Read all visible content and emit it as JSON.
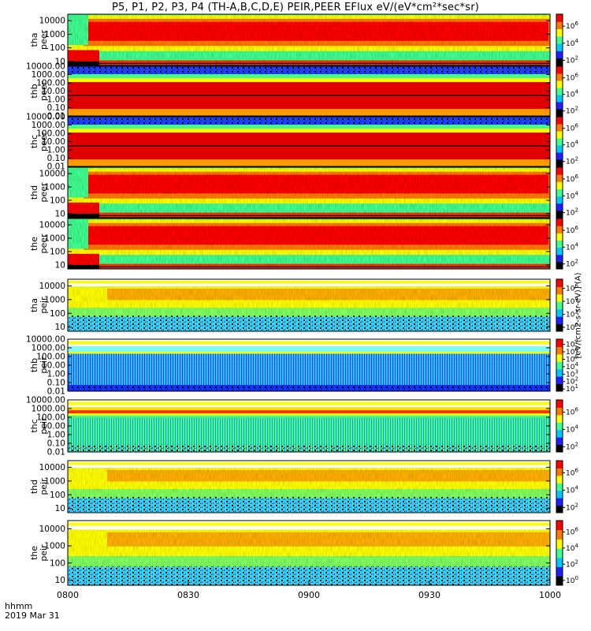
{
  "chart_data": {
    "type": "heatmap",
    "title": "P5, P1, P2, P3, P4 (TH-A,B,C,D,E) PEIR,PEER EFlux eV/(eV*cm²*sec*sr)",
    "x_axis": {
      "ticks": [
        "0800",
        "0830",
        "0900",
        "0930",
        "1000"
      ],
      "range": [
        "08:00",
        "10:00"
      ],
      "label": "hhmm",
      "date": "2019 Mar 31"
    },
    "colorbar_label": "[eV/(cm2-s-sr-eV)] (A)",
    "colormap": [
      "#000000",
      "#2020ff",
      "#00c8ff",
      "#40ff90",
      "#ffff00",
      "#ff7a00",
      "#ff0000"
    ],
    "panels": [
      {
        "id": "tha-peer",
        "probe": "tha",
        "species": "peer",
        "y_scale": "log",
        "y_range": [
          5,
          30000
        ],
        "y_ticks": [
          "10000",
          "1000",
          "100",
          "10"
        ],
        "c_ticks": [
          "10^6",
          "10^4",
          "10^2"
        ],
        "pattern": "eflux"
      },
      {
        "id": "thb-peer",
        "probe": "thb",
        "species": "peer",
        "y_scale": "log",
        "y_range": [
          0.01,
          10000
        ],
        "y_ticks": [
          "10000.00",
          "1000.00",
          "100.00",
          "10.00",
          "1.00",
          "0.10",
          "0.01"
        ],
        "c_ticks": [
          "10^6",
          "10^4",
          "10^2"
        ],
        "pattern": "bands"
      },
      {
        "id": "thc-peer",
        "probe": "thc",
        "species": "peer",
        "y_scale": "log",
        "y_range": [
          0.01,
          10000
        ],
        "y_ticks": [
          "10000.00",
          "1000.00",
          "100.00",
          "10.00",
          "1.00",
          "0.10",
          "0.01"
        ],
        "c_ticks": [
          "10^6",
          "10^4",
          "10^2"
        ],
        "pattern": "bands"
      },
      {
        "id": "thd-peer",
        "probe": "thd",
        "species": "peer",
        "y_scale": "log",
        "y_range": [
          5,
          30000
        ],
        "y_ticks": [
          "10000",
          "1000",
          "100",
          "10"
        ],
        "c_ticks": [
          "10^6",
          "10^4",
          "10^2"
        ],
        "pattern": "eflux"
      },
      {
        "id": "the-peer",
        "probe": "the",
        "species": "peer",
        "y_scale": "log",
        "y_range": [
          5,
          30000
        ],
        "y_ticks": [
          "10000",
          "1000",
          "100",
          "10"
        ],
        "c_ticks": [
          "10^6",
          "10^4",
          "10^2"
        ],
        "pattern": "eflux"
      },
      {
        "id": "tha-peir",
        "probe": "tha",
        "species": "peir",
        "y_scale": "log",
        "y_range": [
          5,
          30000
        ],
        "y_ticks": [
          "10000",
          "1000",
          "100",
          "10"
        ],
        "c_ticks": [
          "10^6",
          "10^4",
          "10^2",
          "10^0"
        ],
        "pattern": "ion"
      },
      {
        "id": "thb-peir",
        "probe": "thb",
        "species": "peir",
        "y_scale": "log",
        "y_range": [
          0.01,
          10000
        ],
        "y_ticks": [
          "10000.00",
          "1000.00",
          "100.00",
          "10.00",
          "1.00",
          "0.10",
          "0.01"
        ],
        "c_ticks": [
          "10^7",
          "10^6",
          "10^5",
          "10^4",
          "10^3",
          "10^2",
          "10^1"
        ],
        "pattern": "noise"
      },
      {
        "id": "thc-peir",
        "probe": "thc",
        "species": "peir",
        "y_scale": "log",
        "y_range": [
          0.01,
          10000
        ],
        "y_ticks": [
          "10000.00",
          "1000.00",
          "100.00",
          "10.00",
          "1.00",
          "0.10",
          "0.01"
        ],
        "c_ticks": [
          "10^6",
          "10^4",
          "10^2"
        ],
        "pattern": "noise2"
      },
      {
        "id": "thd-peir",
        "probe": "thd",
        "species": "peir",
        "y_scale": "log",
        "y_range": [
          5,
          30000
        ],
        "y_ticks": [
          "10000",
          "1000",
          "100",
          "10"
        ],
        "c_ticks": [
          "10^6",
          "10^4",
          "10^2"
        ],
        "pattern": "ion"
      },
      {
        "id": "the-peir",
        "probe": "the",
        "species": "peir",
        "y_scale": "log",
        "y_range": [
          5,
          30000
        ],
        "y_ticks": [
          "10000",
          "1000",
          "100",
          "10"
        ],
        "c_ticks": [
          "10^6",
          "10^4",
          "10^2",
          "10^0"
        ],
        "pattern": "ion"
      }
    ]
  }
}
